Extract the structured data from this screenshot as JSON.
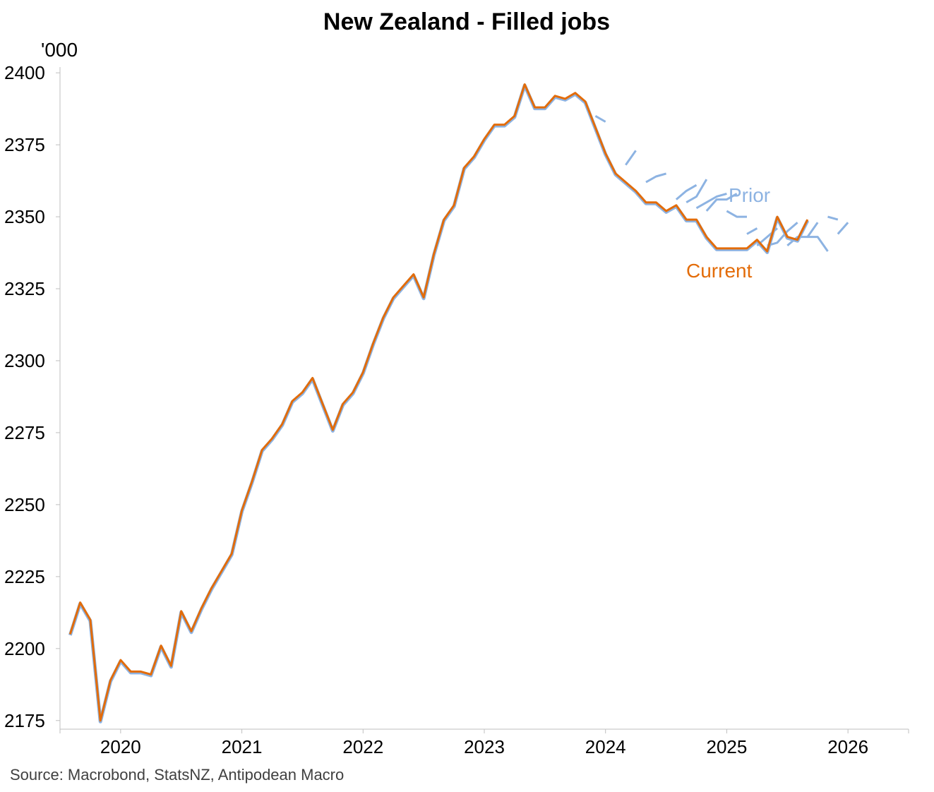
{
  "chart_data": {
    "type": "line",
    "title": "New Zealand - Filled jobs",
    "unit_label": "'000",
    "source": "Source: Macrobond, StatsNZ, Antipodean Macro",
    "ylim": [
      2172,
      2402
    ],
    "yticks": [
      2175,
      2200,
      2225,
      2250,
      2275,
      2300,
      2325,
      2350,
      2375,
      2400
    ],
    "xlim": [
      2019.5,
      2026.5
    ],
    "xticks": [
      "2020",
      "2021",
      "2022",
      "2023",
      "2024",
      "2025",
      "2026"
    ],
    "grid": false,
    "colors": {
      "prior": "#8db3e2",
      "current": "#e36c09"
    },
    "annotations": [
      {
        "text": "Prior",
        "series": "prior"
      },
      {
        "text": "Current",
        "series": "current"
      }
    ],
    "series": [
      {
        "name": "Current",
        "start": "2019-08",
        "values": [
          2205,
          2216,
          2210,
          2175,
          2189,
          2196,
          2192,
          2192,
          2191,
          2201,
          2194,
          2213,
          2206,
          2214,
          2221,
          2227,
          2233,
          2248,
          2258,
          2269,
          2273,
          2278,
          2286,
          2289,
          2294,
          2285,
          2276,
          2285,
          2289,
          2296,
          2306,
          2315,
          2322,
          2326,
          2330,
          2322,
          2337,
          2349,
          2354,
          2367,
          2371,
          2377,
          2382,
          2382,
          2385,
          2396,
          2388,
          2388,
          2392,
          2391,
          2393,
          2390,
          2381,
          2372,
          2365,
          2362,
          2359,
          2355,
          2355,
          2352,
          2354,
          2349,
          2349,
          2343,
          2339,
          2339,
          2339,
          2339,
          2342,
          2338,
          2350,
          2343,
          2342,
          2349
        ]
      },
      {
        "name": "Prior",
        "vintages": [
          {
            "start": "2023-12",
            "values": [
              2385,
              2383
            ]
          },
          {
            "start": "2024-03",
            "values": [
              2368,
              2373
            ]
          },
          {
            "start": "2024-05",
            "values": [
              2362,
              2364,
              2365
            ]
          },
          {
            "start": "2024-08",
            "values": [
              2356,
              2359,
              2361
            ]
          },
          {
            "start": "2024-09",
            "values": [
              2355,
              2357,
              2363
            ]
          },
          {
            "start": "2024-10",
            "values": [
              2353,
              2355,
              2357,
              2358
            ]
          },
          {
            "start": "2024-11",
            "values": [
              2352,
              2356,
              2356,
              2358
            ]
          },
          {
            "start": "2025-01",
            "values": [
              2352,
              2350,
              2350
            ]
          },
          {
            "start": "2025-03",
            "values": [
              2344,
              2346
            ]
          },
          {
            "start": "2025-04",
            "values": [
              2340,
              2343,
              2346
            ]
          },
          {
            "start": "2025-05",
            "values": [
              2340,
              2341,
              2345,
              2348
            ]
          },
          {
            "start": "2025-07",
            "values": [
              2340,
              2343,
              2343,
              2348
            ]
          },
          {
            "start": "2025-09",
            "values": [
              2343,
              2343,
              2338
            ]
          },
          {
            "start": "2025-11",
            "values": [
              2350,
              2349
            ]
          },
          {
            "start": "2025-12",
            "values": [
              2344,
              2348
            ]
          }
        ]
      }
    ]
  }
}
